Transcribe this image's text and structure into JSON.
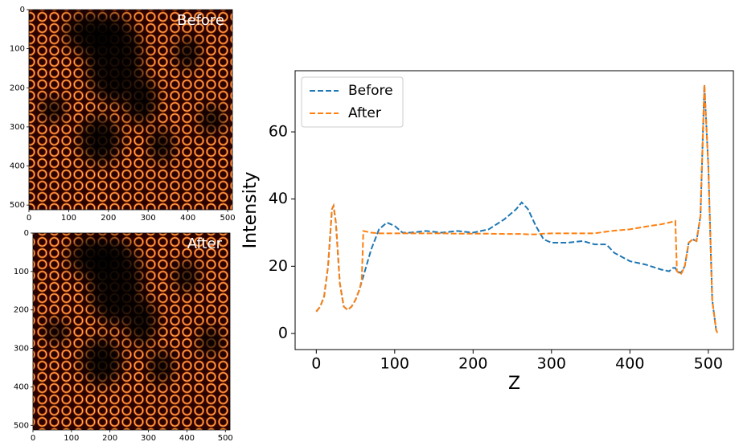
{
  "chart_data": [
    {
      "type": "image",
      "label": "Before",
      "xlim": [
        0,
        512
      ],
      "xticks": [
        0,
        100,
        200,
        300,
        400,
        500
      ],
      "ylim": [
        512,
        0
      ],
      "yticks": [
        0,
        100,
        200,
        300,
        400,
        500
      ]
    },
    {
      "type": "image",
      "label": "After",
      "xlim": [
        0,
        512
      ],
      "xticks": [
        0,
        100,
        200,
        300,
        400,
        500
      ],
      "ylim": [
        512,
        0
      ],
      "yticks": [
        0,
        100,
        200,
        300,
        400,
        500
      ]
    },
    {
      "type": "line",
      "xlabel": "Z",
      "ylabel": "Intensity",
      "xlim": [
        -27,
        532
      ],
      "xticks": [
        0,
        100,
        200,
        300,
        400,
        500
      ],
      "ylim": [
        -4.8,
        78.2
      ],
      "yticks": [
        0,
        20,
        40,
        60
      ],
      "legend": "upper left",
      "x": [
        0,
        5,
        10,
        15,
        20,
        22,
        25,
        30,
        35,
        40,
        45,
        50,
        55,
        58,
        60,
        70,
        80,
        90,
        100,
        110,
        120,
        140,
        160,
        180,
        200,
        220,
        240,
        255,
        262,
        270,
        280,
        290,
        300,
        320,
        340,
        355,
        370,
        380,
        400,
        420,
        440,
        450,
        455,
        458,
        460,
        465,
        470,
        475,
        480,
        485,
        490,
        495,
        500,
        505,
        510,
        512
      ],
      "series": [
        {
          "name": "Before",
          "color": "#1f77b4",
          "values": [
            6.5,
            8,
            11,
            20,
            37,
            38,
            33,
            15,
            8,
            7,
            8,
            10,
            13,
            15.5,
            17,
            25,
            31,
            33,
            32,
            30,
            30,
            30.5,
            30,
            30.5,
            30,
            31,
            34,
            37,
            39,
            37,
            32,
            28,
            27,
            27,
            27.5,
            26.5,
            26.5,
            24,
            21.5,
            20.5,
            19,
            18.5,
            19.5,
            19.5,
            18.5,
            18,
            20,
            27,
            28,
            27.5,
            35,
            74,
            50,
            10,
            1,
            0
          ]
        },
        {
          "name": "After",
          "color": "#ff7f0e",
          "values": [
            6.5,
            8,
            11,
            20,
            37,
            38,
            33,
            15,
            8,
            7,
            8,
            10,
            13,
            16,
            30.5,
            30,
            29.8,
            29.8,
            29.8,
            29.8,
            29.8,
            29.8,
            29.8,
            29.7,
            29.7,
            29.7,
            29.6,
            29.6,
            29.6,
            29.5,
            29.5,
            29.7,
            29.8,
            29.8,
            29.8,
            29.8,
            30.3,
            30.6,
            31,
            31.8,
            32.5,
            33,
            33.3,
            33.5,
            18.5,
            17.5,
            20,
            27,
            28,
            27.5,
            35,
            74,
            50,
            10,
            1,
            0
          ]
        }
      ]
    }
  ]
}
